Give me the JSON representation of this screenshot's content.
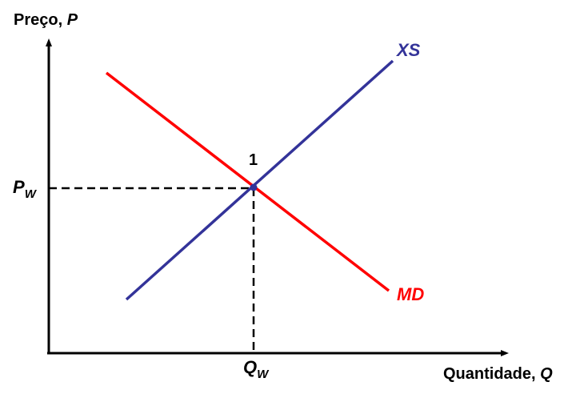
{
  "axes": {
    "y_label": {
      "text": "Preço, ",
      "var": "P"
    },
    "x_label": {
      "text": "Quantidade, ",
      "var": "Q"
    }
  },
  "curves": {
    "supply": {
      "label": "XS",
      "color": "#333399"
    },
    "demand": {
      "label": "MD",
      "color": "#ff0000"
    }
  },
  "equilibrium": {
    "point_label": "1",
    "price_label": {
      "main": "P",
      "sub": "W"
    },
    "quantity_label": {
      "main": "Q",
      "sub": "W"
    }
  },
  "colors": {
    "axis": "#000000",
    "guide": "#000000"
  }
}
